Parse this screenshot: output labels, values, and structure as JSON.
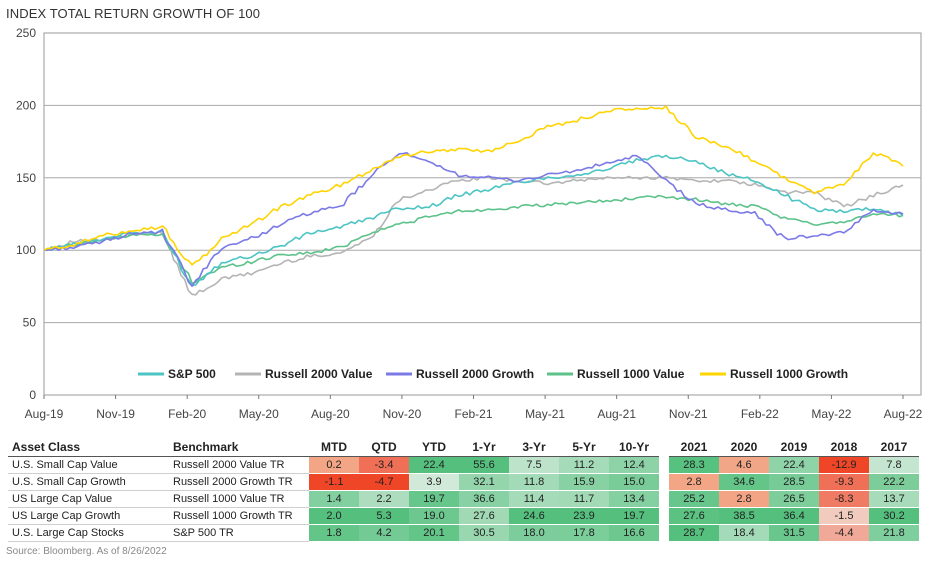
{
  "chart_data": {
    "type": "line",
    "title": "INDEX TOTAL RETURN GROWTH OF 100",
    "x_tick_labels": [
      "Aug-19",
      "Nov-19",
      "Feb-20",
      "May-20",
      "Aug-20",
      "Nov-20",
      "Feb-21",
      "May-21",
      "Aug-21",
      "Nov-21",
      "Feb-22",
      "May-22",
      "Aug-22"
    ],
    "y_ticks": [
      0,
      50,
      100,
      150,
      200,
      250
    ],
    "ylim": [
      0,
      250
    ],
    "grid": "horizontal",
    "legend_placement": "bottom",
    "series": [
      {
        "name": "S&P 500",
        "color": "#4cc4c4",
        "values": [
          100,
          104,
          108,
          112,
          112,
          75,
          92,
          96,
          103,
          112,
          116,
          122,
          129,
          130,
          138,
          142,
          147,
          150,
          152,
          156,
          162,
          165,
          162,
          153,
          148,
          138,
          128,
          127,
          129,
          124
        ]
      },
      {
        "name": "Russell 2000 Value",
        "color": "#b4b4b4",
        "values": [
          100,
          106,
          107,
          110,
          113,
          68,
          80,
          84,
          91,
          96,
          98,
          108,
          135,
          142,
          148,
          150,
          148,
          146,
          148,
          150,
          150,
          150,
          148,
          148,
          145,
          140,
          140,
          130,
          138,
          145
        ]
      },
      {
        "name": "Russell 2000 Growth",
        "color": "#7b79e6",
        "values": [
          100,
          102,
          106,
          112,
          112,
          75,
          102,
          108,
          118,
          126,
          130,
          150,
          168,
          160,
          152,
          150,
          148,
          152,
          155,
          160,
          165,
          148,
          132,
          128,
          125,
          108,
          110,
          112,
          128,
          125
        ]
      },
      {
        "name": "Russell 1000 Value",
        "color": "#5cc28a",
        "values": [
          100,
          104,
          107,
          111,
          110,
          78,
          88,
          92,
          97,
          98,
          102,
          112,
          118,
          123,
          127,
          128,
          130,
          131,
          133,
          134,
          136,
          137,
          135,
          132,
          130,
          122,
          118,
          120,
          125,
          124
        ]
      },
      {
        "name": "Russell 1000 Growth",
        "color": "#ffd400",
        "values": [
          100,
          104,
          110,
          114,
          116,
          88,
          108,
          118,
          130,
          138,
          145,
          155,
          165,
          168,
          170,
          168,
          176,
          185,
          190,
          196,
          198,
          198,
          178,
          172,
          162,
          150,
          140,
          145,
          168,
          158
        ]
      }
    ]
  },
  "table": {
    "headers": [
      "Asset Class",
      "Benchmark",
      "MTD",
      "QTD",
      "YTD",
      "1-Yr",
      "3-Yr",
      "5-Yr",
      "10-Yr",
      "2021",
      "2020",
      "2019",
      "2018",
      "2017"
    ],
    "rows": [
      {
        "asset": "U.S. Small Cap Value",
        "benchmark": "Russell 2000 Value TR",
        "values": [
          "0.2",
          "-3.4",
          "22.4",
          "55.6",
          "7.5",
          "11.2",
          "12.4",
          "28.3",
          "4.6",
          "22.4",
          "-12.9",
          "7.8"
        ]
      },
      {
        "asset": "U.S. Small Cap Growth",
        "benchmark": "Russell 2000 Growth TR",
        "values": [
          "-1.1",
          "-4.7",
          "3.9",
          "32.1",
          "11.8",
          "15.9",
          "15.0",
          "2.8",
          "34.6",
          "28.5",
          "-9.3",
          "22.2"
        ]
      },
      {
        "asset": "US Large Cap Value",
        "benchmark": "Russell 1000 Value TR",
        "values": [
          "1.4",
          "2.2",
          "19.7",
          "36.6",
          "11.4",
          "11.7",
          "13.4",
          "25.2",
          "2.8",
          "26.5",
          "-8.3",
          "13.7"
        ]
      },
      {
        "asset": "US Large Cap Growth",
        "benchmark": "Russell 1000 Growth TR",
        "values": [
          "2.0",
          "5.3",
          "19.0",
          "27.6",
          "24.6",
          "23.9",
          "19.7",
          "27.6",
          "38.5",
          "36.4",
          "-1.5",
          "30.2"
        ]
      },
      {
        "asset": "U.S. Large Cap Stocks",
        "benchmark": "S&P 500 TR",
        "values": [
          "1.8",
          "4.2",
          "20.1",
          "30.5",
          "18.0",
          "17.8",
          "16.6",
          "28.7",
          "18.4",
          "31.5",
          "-4.4",
          "21.8"
        ]
      }
    ]
  },
  "source_note": "Source: Bloomberg. As of 8/26/2022"
}
